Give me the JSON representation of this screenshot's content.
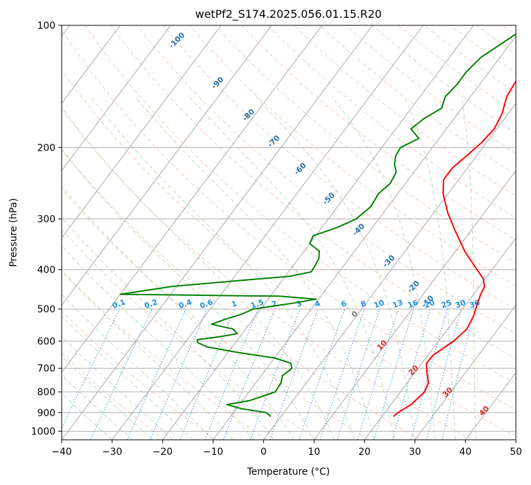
{
  "chart_data": {
    "type": "line",
    "title": "wetPf2_S174.2025.056.01.15.R20",
    "xlabel": "Temperature (°C)",
    "ylabel": "Pressure (hPa)",
    "xlim": [
      -40,
      50
    ],
    "ylim": [
      1050,
      100
    ],
    "y_scale": "log",
    "grid": true,
    "x_ticks": [
      -40,
      -30,
      -20,
      -10,
      0,
      10,
      20,
      30,
      40,
      50
    ],
    "x_tick_labels": [
      "−40",
      "−30",
      "−20",
      "−10",
      "0",
      "10",
      "20",
      "30",
      "40",
      "50"
    ],
    "y_ticks": [
      1000,
      900,
      800,
      700,
      600,
      500,
      400,
      300,
      200,
      100
    ],
    "y_tick_labels": [
      "1000",
      "900",
      "800",
      "700",
      "600",
      "500",
      "400",
      "300",
      "200",
      "100"
    ],
    "series": [
      {
        "color": "#ff0000",
        "p": [
          920,
          900,
          860,
          800,
          760,
          720,
          680,
          650,
          600,
          560,
          520,
          500,
          480,
          460,
          440,
          420,
          400,
          360,
          320,
          290,
          260,
          240,
          225,
          210,
          195,
          180,
          165,
          150,
          135,
          125,
          115,
          100
        ],
        "t": [
          22.3,
          22.6,
          24.0,
          24.8,
          24.2,
          22.5,
          20.9,
          21.0,
          23.0,
          23.8,
          23.2,
          22.6,
          22.0,
          21.4,
          21.0,
          19.5,
          17.0,
          11.8,
          6.8,
          2.8,
          -1.0,
          -3.0,
          -3.0,
          -2.0,
          -1.0,
          -0.5,
          -1.2,
          -2.8,
          -3.4,
          -3.0,
          -3.0,
          -3.2
        ]
      },
      {
        "color": "#008000",
        "p": [
          920,
          900,
          880,
          860,
          840,
          800,
          760,
          730,
          700,
          680,
          660,
          640,
          620,
          605,
          595,
          585,
          575,
          560,
          545,
          530,
          515,
          500,
          485,
          473,
          465,
          460,
          440,
          425,
          415,
          405,
          390,
          375,
          360,
          345,
          330,
          315,
          300,
          280,
          260,
          245,
          230,
          220,
          210,
          200,
          190,
          180,
          170,
          160,
          150,
          140,
          130,
          120,
          110,
          100
        ],
        "t": [
          -2.0,
          -3.5,
          -9.0,
          -12.5,
          -8.5,
          -4.8,
          -5.0,
          -5.8,
          -5.0,
          -6.0,
          -10.0,
          -18.0,
          -25.0,
          -27.5,
          -28.0,
          -24.0,
          -21.0,
          -22.5,
          -27.5,
          -25.5,
          -23.0,
          -21.5,
          -15.0,
          -10.5,
          -18.0,
          -50.0,
          -41.0,
          -28.0,
          -19.0,
          -15.5,
          -15.7,
          -16.0,
          -17.0,
          -20.0,
          -20.5,
          -17.0,
          -14.5,
          -13.4,
          -13.8,
          -13.0,
          -13.5,
          -15.0,
          -16.0,
          -16.3,
          -14.0,
          -17.0,
          -16.0,
          -14.0,
          -15.0,
          -14.5,
          -14.5,
          -13.8,
          -11.5,
          -9.0
        ]
      }
    ],
    "isotherm_labels": [
      "0",
      "10",
      "20",
      "30",
      "40"
    ],
    "dry_adiabat_labels": [
      "-100",
      "-90",
      "-80",
      "-70",
      "-60",
      "-50",
      "-40",
      "-30",
      "-20",
      "-10"
    ],
    "mixing_ratio_labels": [
      "0.1",
      "0.2",
      "0.4",
      "0.6",
      "1",
      "1.5",
      "2",
      "3",
      "4",
      "6",
      "8",
      "10",
      "13",
      "16",
      "20",
      "25",
      "30",
      "36"
    ]
  }
}
